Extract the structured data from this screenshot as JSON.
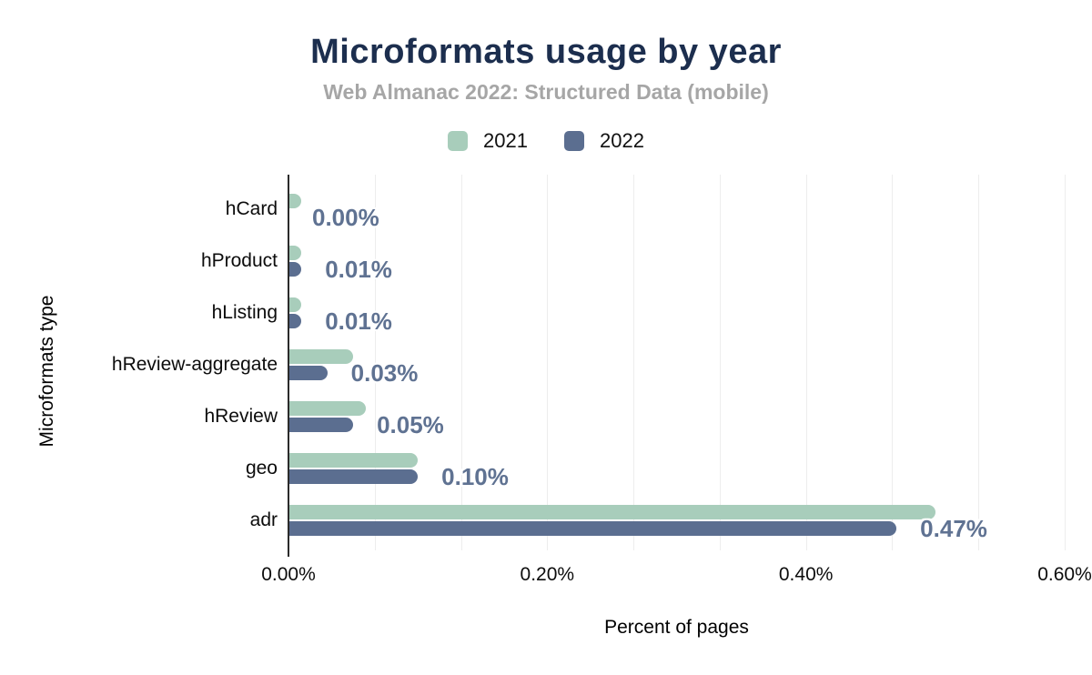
{
  "chart_data": {
    "type": "bar",
    "orientation": "horizontal",
    "title": "Microformats usage by year",
    "subtitle": "Web Almanac 2022: Structured Data (mobile)",
    "xlabel": "Percent of pages",
    "ylabel": "Microformats type",
    "xlim": [
      0,
      0.6
    ],
    "x_ticks": [
      {
        "value": 0.0,
        "label": "0.00%"
      },
      {
        "value": 0.2,
        "label": "0.20%"
      },
      {
        "value": 0.4,
        "label": "0.40%"
      },
      {
        "value": 0.6,
        "label": "0.60%"
      }
    ],
    "grid": "vertical light gridlines, 9 divisions",
    "legend_position": "top-center",
    "categories": [
      "hCard",
      "hProduct",
      "hListing",
      "hReview-aggregate",
      "hReview",
      "geo",
      "adr"
    ],
    "series": [
      {
        "name": "2021",
        "color": "#a8cdbb",
        "values": [
          0.01,
          0.01,
          0.01,
          0.05,
          0.06,
          0.1,
          0.5
        ]
      },
      {
        "name": "2022",
        "color": "#5b6e90",
        "values": [
          0.0,
          0.01,
          0.01,
          0.03,
          0.05,
          0.1,
          0.47
        ]
      }
    ],
    "data_labels": [
      "0.00%",
      "0.01%",
      "0.01%",
      "0.03%",
      "0.05%",
      "0.10%",
      "0.47%"
    ],
    "data_label_color": "#5f7292"
  },
  "colors": {
    "title": "#1c2e4e",
    "subtitle": "#a6a6a6",
    "axis_line": "#2b2b2b",
    "gridline": "#ededed",
    "background": "#ffffff"
  }
}
